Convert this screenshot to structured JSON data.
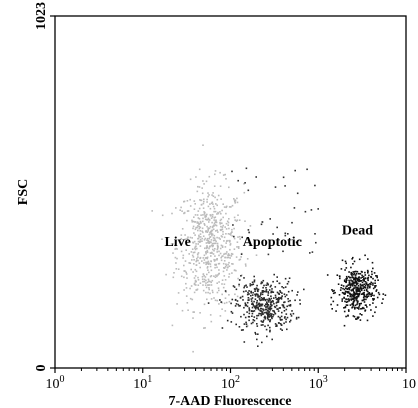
{
  "chart_data": {
    "type": "scatter",
    "xlabel": "7-AAD Fluorescence",
    "ylabel": "FSC",
    "x_scale": "log",
    "x_ticks": [
      {
        "value": 1,
        "base": "10",
        "exp": "0"
      },
      {
        "value": 10,
        "base": "10",
        "exp": "1"
      },
      {
        "value": 100,
        "base": "10",
        "exp": "2"
      },
      {
        "value": 1000,
        "base": "10",
        "exp": "3"
      },
      {
        "value": 10000,
        "base": "10",
        "exp": ""
      }
    ],
    "y_ticks": [
      "0",
      "1023"
    ],
    "xlim": [
      1,
      10000
    ],
    "ylim": [
      0,
      1023
    ],
    "grid": false,
    "legend": "none",
    "annotations": [
      {
        "text": "Live",
        "x": 25,
        "y": 355
      },
      {
        "text": "Apoptotic",
        "x": 300,
        "y": 355
      },
      {
        "text": "Dead",
        "x": 2800,
        "y": 388
      }
    ],
    "populations": [
      {
        "label": "Live",
        "color": "#bbbbbb",
        "count": 650,
        "x_log_center": 1.76,
        "x_log_sd": 0.19,
        "y_center": 355,
        "y_sd": 90
      },
      {
        "label": "Apoptotic",
        "color": "#2a2a2a",
        "count": 430,
        "x_log_center": 2.38,
        "x_log_sd": 0.17,
        "y_center": 185,
        "y_sd": 38
      },
      {
        "label": "Dead",
        "color": "#111111",
        "count": 420,
        "x_log_center": 3.43,
        "x_log_sd": 0.11,
        "y_center": 228,
        "y_sd": 35
      }
    ]
  }
}
